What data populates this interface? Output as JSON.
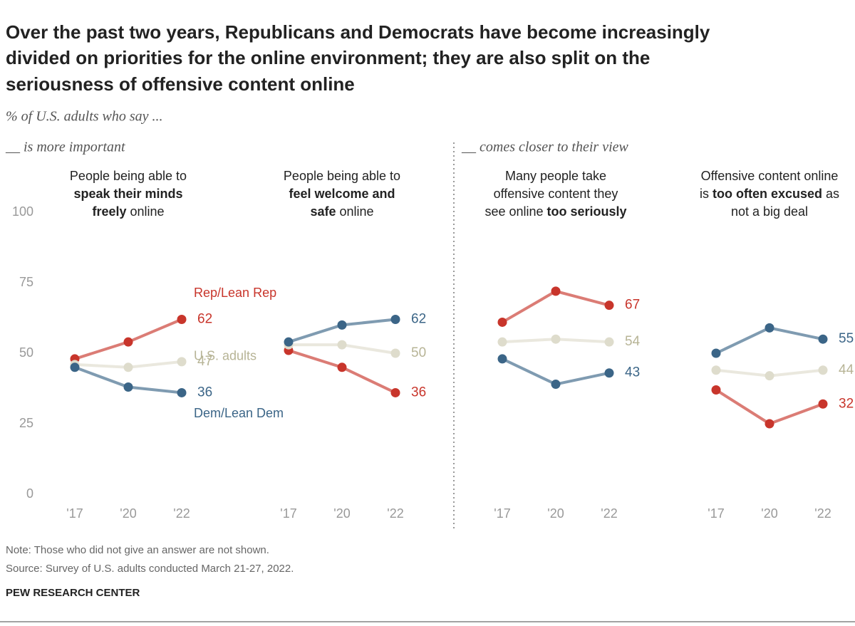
{
  "title": [
    "Over the past two years, Republicans and Democrats have become increasingly",
    "divided on priorities for the online environment; they are also split on the",
    "seriousness of offensive content online"
  ],
  "subtitle": "% of U.S. adults who say ...",
  "sections": [
    "__ is more important",
    "__ comes closer to their view"
  ],
  "note": "Note: Those who did not give an answer are not shown.",
  "source": "Source: Survey of U.S. adults conducted March 21-27, 2022.",
  "credit": "PEW RESEARCH CENTER",
  "chart_data": [
    {
      "type": "line",
      "title_lines": [
        [
          {
            "t": "People being able to"
          }
        ],
        [
          {
            "t": "speak their minds",
            "b": true
          }
        ],
        [
          {
            "t": "freely",
            "b": true
          },
          {
            "t": " online"
          }
        ]
      ],
      "categories": [
        "'17",
        "'20",
        "'22"
      ],
      "ylim": [
        0,
        100
      ],
      "yticks": [
        0,
        25,
        50,
        75,
        100
      ],
      "series": [
        {
          "name": "Rep/Lean Rep",
          "color": "#c8352b",
          "label_color": "#c8352b",
          "values": [
            48,
            54,
            62
          ]
        },
        {
          "name": "U.S. adults",
          "color": "#dedccc",
          "label_color": "#b7b496",
          "values": [
            46,
            45,
            47
          ]
        },
        {
          "name": "Dem/Lean Dem",
          "color": "#3b6587",
          "label_color": "#3b6587",
          "values": [
            45,
            38,
            36
          ]
        }
      ]
    },
    {
      "type": "line",
      "title_lines": [
        [
          {
            "t": "People being able to"
          }
        ],
        [
          {
            "t": "feel welcome and",
            "b": true
          }
        ],
        [
          {
            "t": "safe",
            "b": true
          },
          {
            "t": " online"
          }
        ]
      ],
      "categories": [
        "'17",
        "'20",
        "'22"
      ],
      "ylim": [
        0,
        100
      ],
      "series": [
        {
          "name": "Rep/Lean Rep",
          "color": "#c8352b",
          "label_color": "#c8352b",
          "values": [
            51,
            45,
            36
          ]
        },
        {
          "name": "U.S. adults",
          "color": "#dedccc",
          "label_color": "#b7b496",
          "values": [
            53,
            53,
            50
          ]
        },
        {
          "name": "Dem/Lean Dem",
          "color": "#3b6587",
          "label_color": "#3b6587",
          "values": [
            54,
            60,
            62
          ]
        }
      ]
    },
    {
      "type": "line",
      "title_lines": [
        [
          {
            "t": "Many people take"
          }
        ],
        [
          {
            "t": "offensive content they"
          }
        ],
        [
          {
            "t": "see online "
          },
          {
            "t": "too seriously",
            "b": true
          }
        ]
      ],
      "categories": [
        "'17",
        "'20",
        "'22"
      ],
      "ylim": [
        0,
        100
      ],
      "series": [
        {
          "name": "Rep/Lean Rep",
          "color": "#c8352b",
          "label_color": "#c8352b",
          "values": [
            61,
            72,
            67
          ]
        },
        {
          "name": "U.S. adults",
          "color": "#dedccc",
          "label_color": "#b7b496",
          "values": [
            54,
            55,
            54
          ]
        },
        {
          "name": "Dem/Lean Dem",
          "color": "#3b6587",
          "label_color": "#3b6587",
          "values": [
            48,
            39,
            43
          ]
        }
      ]
    },
    {
      "type": "line",
      "title_lines": [
        [
          {
            "t": "Offensive content online"
          }
        ],
        [
          {
            "t": "is "
          },
          {
            "t": "too often excused",
            "b": true
          },
          {
            "t": " as"
          }
        ],
        [
          {
            "t": "not a big deal"
          }
        ]
      ],
      "categories": [
        "'17",
        "'20",
        "'22"
      ],
      "ylim": [
        0,
        100
      ],
      "series": [
        {
          "name": "Rep/Lean Rep",
          "color": "#c8352b",
          "label_color": "#c8352b",
          "values": [
            37,
            25,
            32
          ]
        },
        {
          "name": "U.S. adults",
          "color": "#dedccc",
          "label_color": "#b7b496",
          "values": [
            44,
            42,
            44
          ]
        },
        {
          "name": "Dem/Lean Dem",
          "color": "#3b6587",
          "label_color": "#3b6587",
          "values": [
            50,
            59,
            55
          ]
        }
      ]
    }
  ]
}
